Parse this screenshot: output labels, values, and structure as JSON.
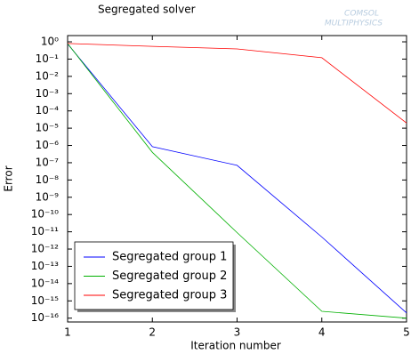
{
  "logo": [
    "COMSOL",
    "MULTIPHYSICS"
  ],
  "chart_data": {
    "type": "line",
    "title": "Segregated solver",
    "xlabel": "Iteration number",
    "ylabel": "Error",
    "x": [
      1,
      2,
      3,
      4,
      5
    ],
    "series": [
      {
        "name": "Segregated group 1",
        "color": "#0000ff",
        "values": [
          0.75,
          8.5e-07,
          7e-08,
          5e-12,
          2e-16
        ]
      },
      {
        "name": "Segregated group 2",
        "color": "#00b000",
        "values": [
          0.8,
          4e-07,
          9e-12,
          2.5e-16,
          1e-16
        ]
      },
      {
        "name": "Segregated group 3",
        "color": "#ff0000",
        "values": [
          0.8,
          0.55,
          0.39,
          0.12,
          2e-05
        ]
      }
    ],
    "xlim": [
      1,
      5
    ],
    "xticks": [
      1,
      2,
      3,
      4,
      5
    ],
    "ylim": [
      6e-17,
      2.3
    ],
    "ylog": true,
    "yticks": [
      {
        "value": 1,
        "label": "10⁰"
      },
      {
        "value": 0.1,
        "label": "10⁻¹"
      },
      {
        "value": 0.01,
        "label": "10⁻²"
      },
      {
        "value": 0.001,
        "label": "10⁻³"
      },
      {
        "value": 0.0001,
        "label": "10⁻⁴"
      },
      {
        "value": 1e-05,
        "label": "10⁻⁵"
      },
      {
        "value": 1e-06,
        "label": "10⁻⁶"
      },
      {
        "value": 1e-07,
        "label": "10⁻⁷"
      },
      {
        "value": 1e-08,
        "label": "10⁻⁸"
      },
      {
        "value": 1e-09,
        "label": "10⁻⁹"
      },
      {
        "value": 1e-10,
        "label": "10⁻¹⁰"
      },
      {
        "value": 1e-11,
        "label": "10⁻¹¹"
      },
      {
        "value": 1e-12,
        "label": "10⁻¹²"
      },
      {
        "value": 1e-13,
        "label": "10⁻¹³"
      },
      {
        "value": 1e-14,
        "label": "10⁻¹⁴"
      },
      {
        "value": 1e-15,
        "label": "10⁻¹⁵"
      },
      {
        "value": 1e-16,
        "label": "10⁻¹⁶"
      }
    ],
    "grid": false,
    "legend": "lower left"
  }
}
